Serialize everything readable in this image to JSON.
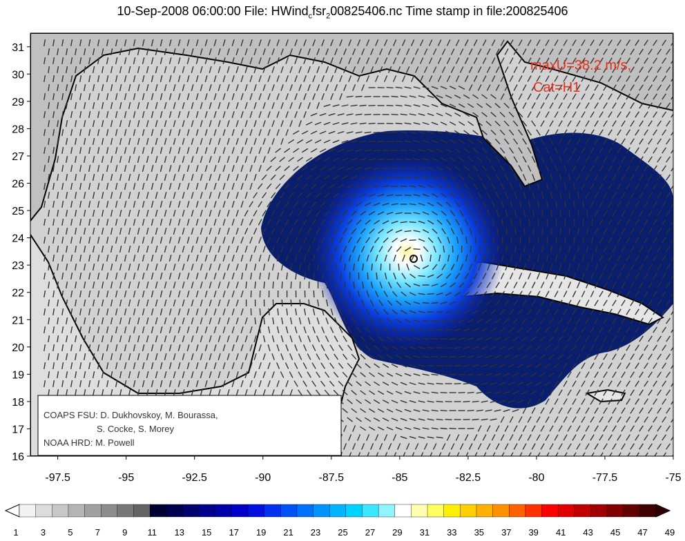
{
  "title": {
    "date": "10-Sep-2008 06:00:00",
    "file_label": "File:",
    "file_part1": "HWind",
    "file_sub1": "c",
    "file_part2": "fsr",
    "file_sub2": "2",
    "file_part3": "00825406.nc",
    "stamp_label": "Time stamp in file:",
    "stamp_value": "200825406"
  },
  "map": {
    "x_ticks": [
      -97.5,
      -95,
      -92.5,
      -90,
      -87.5,
      -85,
      -82.5,
      -80,
      -77.5,
      -75
    ],
    "y_ticks": [
      16,
      17,
      18,
      19,
      20,
      21,
      22,
      23,
      24,
      25,
      26,
      27,
      28,
      29,
      30,
      31
    ],
    "xlim": [
      -98.5,
      -75
    ],
    "ylim": [
      16,
      31.5
    ],
    "storm_center": {
      "lon": -84.3,
      "lat": 23.2
    },
    "max_wind_label": "maxU=38.2 m/s,",
    "category_label": "Cat=H1",
    "annotation_color": "#e03020"
  },
  "credits": {
    "line1": "COAPS FSU: D. Dukhovskoy, M. Bourassa,",
    "line2": "S. Cocke, S. Morey",
    "line3": "NOAA HRD:  M. Powell"
  },
  "colorbar": {
    "labels": [
      "1",
      "3",
      "5",
      "7",
      "9",
      "11",
      "13",
      "15",
      "17",
      "19",
      "21",
      "23",
      "25",
      "27",
      "29",
      "31",
      "33",
      "35",
      "37",
      "39",
      "41",
      "43",
      "45",
      "47",
      "49"
    ],
    "colors": [
      "#f2f2f2",
      "#dcdcdc",
      "#c8c8c8",
      "#b4b4b4",
      "#a0a0a0",
      "#8c8c8c",
      "#787878",
      "#646464",
      "#000033",
      "#000050",
      "#00006e",
      "#00008c",
      "#0000a8",
      "#0000c8",
      "#0010e0",
      "#0030f0",
      "#0050f8",
      "#0070ff",
      "#0094ff",
      "#00b4ff",
      "#00d2ff",
      "#3ce8ff",
      "#90f4ff",
      "#ffffff",
      "#ffffb0",
      "#ffff60",
      "#ffef00",
      "#ffd000",
      "#ffb000",
      "#ff9000",
      "#ff6000",
      "#ff3000",
      "#ff0000",
      "#e00000",
      "#c00000",
      "#a00000",
      "#800000",
      "#600000",
      "#400000"
    ]
  }
}
